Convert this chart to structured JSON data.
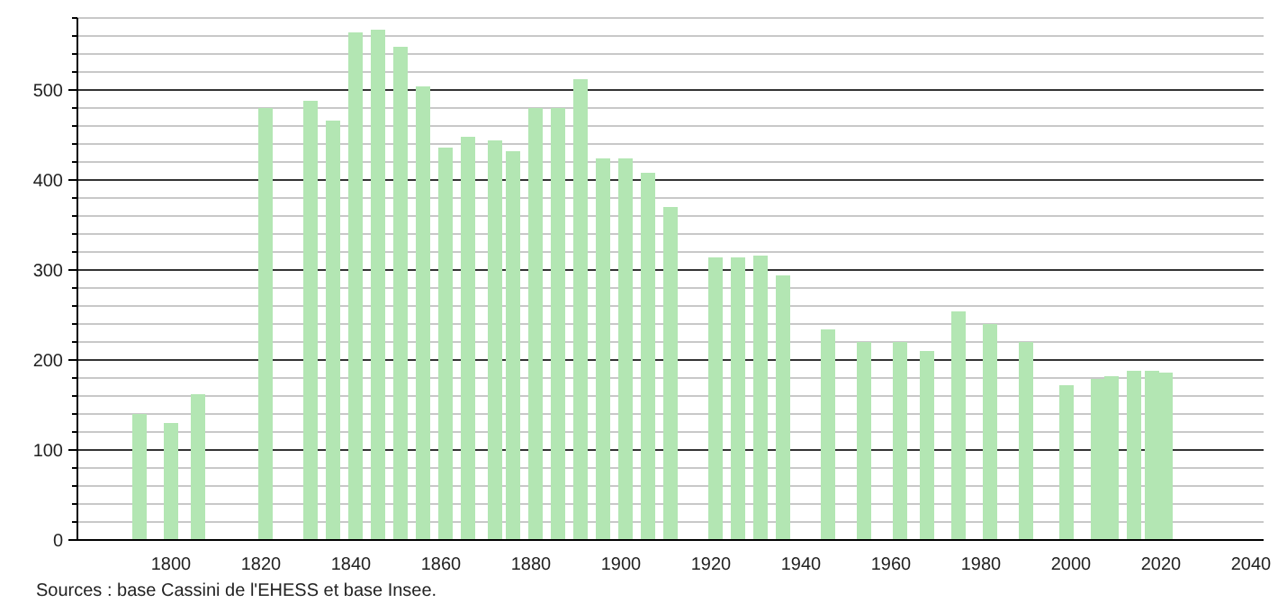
{
  "chart_data": {
    "type": "bar",
    "x": [
      1793,
      1800,
      1806,
      1821,
      1831,
      1836,
      1841,
      1846,
      1851,
      1856,
      1861,
      1866,
      1872,
      1876,
      1881,
      1886,
      1891,
      1896,
      1901,
      1906,
      1911,
      1921,
      1926,
      1931,
      1936,
      1946,
      1954,
      1962,
      1968,
      1975,
      1982,
      1990,
      1999,
      2006,
      2009,
      2014,
      2018,
      2021
    ],
    "values": [
      140,
      130,
      162,
      480,
      488,
      466,
      564,
      567,
      548,
      504,
      436,
      448,
      444,
      432,
      480,
      480,
      512,
      424,
      424,
      408,
      370,
      314,
      314,
      316,
      294,
      234,
      220,
      220,
      210,
      254,
      240,
      220,
      172,
      179,
      182,
      188,
      188,
      186
    ],
    "color": "#b3e6b3",
    "xlim": [
      1780,
      2042
    ],
    "xticks": [
      1800,
      1820,
      1840,
      1860,
      1880,
      1900,
      1920,
      1940,
      1960,
      1980,
      2000,
      2020,
      2040
    ],
    "ylim": [
      0,
      580
    ],
    "yticks": [
      0,
      {
        "value": 20,
        "label": null
      },
      {
        "value": 40,
        "label": null
      },
      {
        "value": 60,
        "label": null
      },
      {
        "value": 80,
        "label": null
      },
      100,
      {
        "value": 120,
        "label": null
      },
      {
        "value": 140,
        "label": null
      },
      {
        "value": 160,
        "label": null
      },
      {
        "value": 180,
        "label": null
      },
      200,
      {
        "value": 220,
        "label": null
      },
      {
        "value": 240,
        "label": null
      },
      {
        "value": 260,
        "label": null
      },
      {
        "value": 280,
        "label": null
      },
      300,
      {
        "value": 320,
        "label": null
      },
      {
        "value": 340,
        "label": null
      },
      {
        "value": 360,
        "label": null
      },
      {
        "value": 380,
        "label": null
      },
      400,
      {
        "value": 420,
        "label": null
      },
      {
        "value": 440,
        "label": null
      },
      {
        "value": 460,
        "label": null
      },
      {
        "value": 480,
        "label": null
      },
      500,
      {
        "value": 520,
        "label": null
      },
      {
        "value": 540,
        "label": null
      },
      {
        "value": 560,
        "label": null
      },
      {
        "value": 580,
        "label": null
      }
    ],
    "grid": "y",
    "annotations": [
      "Sources : base Cassini de l'EHESS et base Insee."
    ]
  }
}
